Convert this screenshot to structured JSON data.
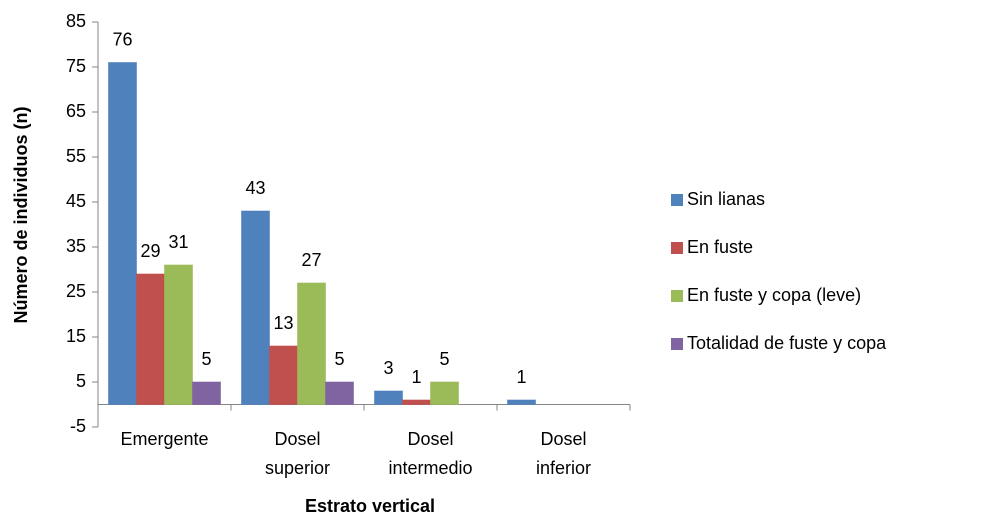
{
  "chart_data": {
    "type": "bar",
    "y_label": "Número de individuos (n)",
    "x_label": "Estrato vertical",
    "categories": [
      "Emergente",
      "Dosel superior",
      "Dosel intermedio",
      "Dosel inferior"
    ],
    "series": [
      {
        "name": "Sin lianas",
        "color": "#4f81bd",
        "values": [
          76,
          43,
          3,
          1
        ]
      },
      {
        "name": "En fuste",
        "color": "#c0504d",
        "values": [
          29,
          13,
          1,
          null
        ]
      },
      {
        "name": "En fuste y copa (leve)",
        "color": "#9bbb59",
        "values": [
          31,
          27,
          5,
          null
        ]
      },
      {
        "name": "Totalidad de fuste y copa",
        "color": "#8064a2",
        "values": [
          5,
          5,
          null,
          null
        ]
      }
    ],
    "ylim": [
      -5,
      85
    ],
    "yticks": [
      -5,
      5,
      15,
      25,
      35,
      45,
      55,
      65,
      75,
      85
    ],
    "legend": "right"
  }
}
